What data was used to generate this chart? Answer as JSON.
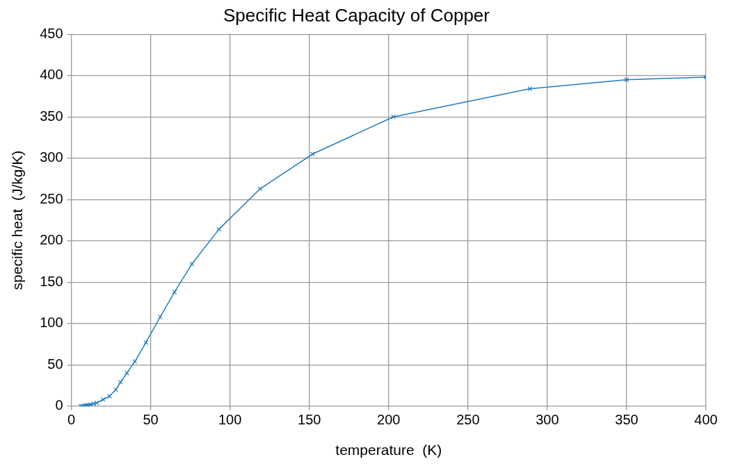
{
  "chart_data": {
    "type": "line",
    "title": "Specific Heat Capacity of Copper",
    "xlabel": "temperature  (K)",
    "ylabel": "specific heat  (J/kg/K)",
    "x": [
      6,
      7,
      8,
      9,
      10,
      11,
      12,
      14,
      16,
      20,
      24,
      28,
      31,
      35,
      40,
      47,
      56,
      65,
      76,
      93,
      119,
      152,
      203,
      289,
      350,
      400
    ],
    "series": [
      {
        "color": "#1f7bc1",
        "values": [
          0,
          0,
          0,
          1,
          1,
          1,
          2,
          3,
          4,
          8,
          12,
          20,
          29,
          40,
          54,
          77,
          108,
          138,
          172,
          214,
          263,
          305,
          350,
          384,
          395,
          398
        ]
      }
    ],
    "xlim": [
      0,
      400
    ],
    "xticks": [
      0,
      50,
      100,
      150,
      200,
      250,
      300,
      350,
      400
    ],
    "ylim": [
      0,
      450
    ],
    "yticks": [
      0,
      50,
      100,
      150,
      200,
      250,
      300,
      350,
      400,
      450
    ],
    "grid": true,
    "legend": false,
    "marker": "cross",
    "line_style": "solid"
  }
}
